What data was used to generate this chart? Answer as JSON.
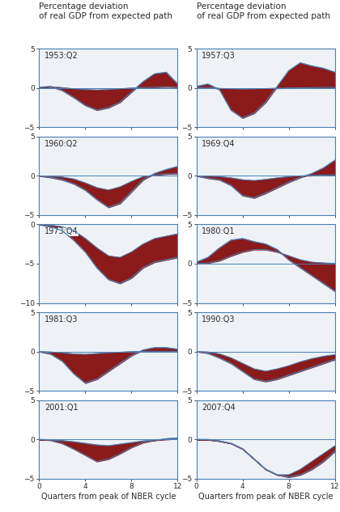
{
  "panels": [
    {
      "label": "1953:Q2",
      "row": 0,
      "col": 0,
      "ylim": [
        -5,
        5
      ],
      "yticks": [
        -5,
        0,
        5
      ],
      "gdp": [
        0.1,
        0.2,
        -0.3,
        -1.2,
        -2.2,
        -2.8,
        -2.5,
        -1.8,
        -0.5,
        0.8,
        1.8,
        2.0,
        0.5
      ],
      "bs": [
        0.05,
        0.15,
        0.05,
        -0.1,
        -0.2,
        -0.25,
        -0.2,
        -0.1,
        0.0,
        0.05,
        0.1,
        0.15,
        0.1
      ]
    },
    {
      "label": "1957:Q3",
      "row": 0,
      "col": 1,
      "ylim": [
        -5,
        5
      ],
      "yticks": [
        -5,
        0,
        5
      ],
      "gdp": [
        0.2,
        0.5,
        -0.2,
        -2.8,
        -3.8,
        -3.2,
        -1.8,
        0.2,
        2.2,
        3.2,
        2.8,
        2.5,
        2.0
      ],
      "bs": [
        0.05,
        0.05,
        -0.05,
        -0.1,
        -0.15,
        -0.12,
        -0.08,
        -0.02,
        0.0,
        0.02,
        0.05,
        0.08,
        0.08
      ]
    },
    {
      "label": "1960:Q2",
      "row": 1,
      "col": 0,
      "ylim": [
        -5,
        5
      ],
      "yticks": [
        -5,
        0,
        5
      ],
      "gdp": [
        0.0,
        -0.2,
        -0.5,
        -1.0,
        -1.8,
        -3.0,
        -4.0,
        -3.5,
        -2.0,
        -0.5,
        0.3,
        0.8,
        1.2
      ],
      "bs": [
        0.0,
        -0.05,
        -0.15,
        -0.4,
        -0.9,
        -1.5,
        -1.8,
        -1.4,
        -0.7,
        -0.1,
        0.1,
        0.25,
        0.3
      ]
    },
    {
      "label": "1969:Q4",
      "row": 1,
      "col": 1,
      "ylim": [
        -5,
        5
      ],
      "yticks": [
        -5,
        0,
        5
      ],
      "gdp": [
        0.0,
        -0.3,
        -0.5,
        -1.2,
        -2.5,
        -2.8,
        -2.2,
        -1.5,
        -0.8,
        -0.2,
        0.3,
        1.0,
        2.0
      ],
      "bs": [
        0.0,
        -0.05,
        -0.1,
        -0.25,
        -0.5,
        -0.6,
        -0.45,
        -0.25,
        -0.1,
        0.0,
        0.05,
        0.1,
        0.15
      ]
    },
    {
      "label": "1973:Q4",
      "row": 2,
      "col": 0,
      "ylim": [
        -10,
        0
      ],
      "yticks": [
        -10,
        -5,
        0
      ],
      "gdp": [
        0.0,
        -0.3,
        -0.8,
        -2.0,
        -3.5,
        -5.5,
        -7.0,
        -7.5,
        -6.8,
        -5.5,
        -4.8,
        -4.5,
        -4.2
      ],
      "bs": [
        0.0,
        -0.1,
        -0.3,
        -0.8,
        -1.8,
        -3.0,
        -4.0,
        -4.2,
        -3.5,
        -2.5,
        -1.8,
        -1.5,
        -1.2
      ]
    },
    {
      "label": "1980:Q1",
      "row": 2,
      "col": 1,
      "ylim": [
        -5,
        5
      ],
      "yticks": [
        -5,
        0,
        5
      ],
      "gdp": [
        0.2,
        0.8,
        2.0,
        3.0,
        3.2,
        2.8,
        2.5,
        1.8,
        0.5,
        -0.5,
        -1.5,
        -2.5,
        -3.5
      ],
      "bs": [
        0.0,
        0.1,
        0.4,
        1.0,
        1.5,
        1.8,
        1.8,
        1.5,
        1.0,
        0.5,
        0.2,
        0.1,
        0.05
      ]
    },
    {
      "label": "1981:Q3",
      "row": 3,
      "col": 0,
      "ylim": [
        -5,
        5
      ],
      "yticks": [
        -5,
        0,
        5
      ],
      "gdp": [
        0.0,
        -0.3,
        -1.2,
        -2.8,
        -4.0,
        -3.5,
        -2.5,
        -1.5,
        -0.5,
        0.2,
        0.5,
        0.5,
        0.3
      ],
      "bs": [
        0.0,
        -0.05,
        -0.15,
        -0.3,
        -0.35,
        -0.25,
        -0.15,
        -0.08,
        0.0,
        0.02,
        0.03,
        0.03,
        0.02
      ]
    },
    {
      "label": "1990:Q3",
      "row": 3,
      "col": 1,
      "ylim": [
        -5,
        5
      ],
      "yticks": [
        -5,
        0,
        5
      ],
      "gdp": [
        0.0,
        -0.2,
        -0.8,
        -1.5,
        -2.5,
        -3.5,
        -3.8,
        -3.5,
        -3.0,
        -2.5,
        -2.0,
        -1.5,
        -1.0
      ],
      "bs": [
        0.0,
        -0.05,
        -0.3,
        -0.8,
        -1.5,
        -2.2,
        -2.5,
        -2.2,
        -1.8,
        -1.3,
        -0.9,
        -0.6,
        -0.4
      ]
    },
    {
      "label": "2001:Q1",
      "row": 4,
      "col": 0,
      "ylim": [
        -5,
        5
      ],
      "yticks": [
        -5,
        0,
        5
      ],
      "gdp": [
        0.0,
        -0.05,
        -0.15,
        -0.3,
        -0.5,
        -0.7,
        -0.8,
        -0.6,
        -0.4,
        -0.2,
        -0.1,
        0.0,
        0.1
      ],
      "bs": [
        0.0,
        -0.1,
        -0.5,
        -1.2,
        -2.0,
        -2.8,
        -2.5,
        -1.8,
        -1.0,
        -0.4,
        -0.1,
        0.1,
        0.2
      ]
    },
    {
      "label": "2007:Q4",
      "row": 4,
      "col": 1,
      "ylim": [
        -5,
        5
      ],
      "yticks": [
        -5,
        0,
        5
      ],
      "gdp": [
        0.0,
        0.0,
        -0.2,
        -0.5,
        -1.2,
        -2.5,
        -3.8,
        -4.5,
        -4.8,
        -4.5,
        -3.8,
        -2.8,
        -1.5
      ],
      "bs": [
        0.0,
        -0.05,
        -0.2,
        -0.5,
        -1.2,
        -2.5,
        -3.8,
        -4.5,
        -4.5,
        -3.8,
        -2.8,
        -1.8,
        -0.8
      ]
    }
  ],
  "x": [
    0,
    1,
    2,
    3,
    4,
    5,
    6,
    7,
    8,
    9,
    10,
    11,
    12
  ],
  "line_color": "#4a7fb5",
  "fill_color": "#8b1a1a",
  "axis_color": "#4a7fb5",
  "title_left": "Percentage deviation\nof real GDP from expected path",
  "title_right": "Percentage deviation\nof real GDP from expected path",
  "xlabel": "Quarters from peak of NBER cycle",
  "label_fontsize": 7,
  "title_fontsize": 7.5,
  "tick_fontsize": 6.5,
  "bg_color": "#f0f4f8"
}
